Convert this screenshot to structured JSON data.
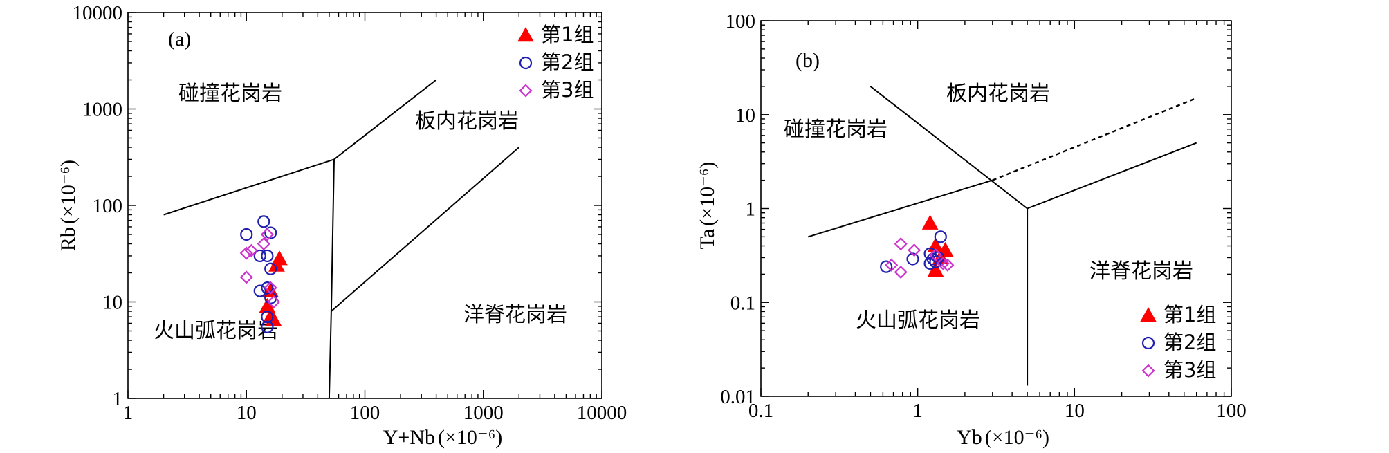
{
  "chart_data": [
    {
      "type": "scatter",
      "panel_label": "(a)",
      "xlabel": "Y+Nb",
      "ylabel": "Rb",
      "unit": "(×10⁻⁶)",
      "xscale": "log",
      "yscale": "log",
      "xlim": [
        1,
        10000
      ],
      "ylim": [
        1,
        10000
      ],
      "x_ticks": [
        1,
        10,
        100,
        1000,
        10000
      ],
      "x_tick_labels": [
        "1",
        "10",
        "100",
        "1000",
        "10000"
      ],
      "y_ticks": [
        1,
        10,
        100,
        1000,
        10000
      ],
      "y_tick_labels": [
        "1",
        "10",
        "100",
        "1000",
        "10000"
      ],
      "regions": [
        {
          "label": "碰撞花岗岩",
          "x": 7,
          "y": 1000
        },
        {
          "label": "板内花岗岩",
          "x": 700,
          "y": 800
        },
        {
          "label": "洋脊花岗岩",
          "x": 1000,
          "y": 8
        },
        {
          "label": "火山弧花岗岩",
          "x": 6,
          "y": 5.5
        }
      ],
      "boundaries": [
        {
          "style": "solid",
          "points": [
            [
              2,
              80
            ],
            [
              55,
              300
            ],
            [
              400,
              2000
            ]
          ]
        },
        {
          "style": "solid",
          "points": [
            [
              55,
              300
            ],
            [
              52,
              8
            ],
            [
              50,
              1
            ]
          ]
        },
        {
          "style": "solid",
          "points": [
            [
              52,
              8
            ],
            [
              2000,
              400
            ]
          ]
        }
      ],
      "legend": {
        "position": "top-right",
        "entries": [
          "第1组",
          "第2组",
          "第3组"
        ]
      },
      "series": [
        {
          "name": "第1组",
          "marker": "triangle",
          "color": "#ff0000",
          "points": [
            [
              19,
              28
            ],
            [
              18,
              24
            ],
            [
              16,
              13
            ],
            [
              15,
              9
            ],
            [
              16,
              7
            ],
            [
              17,
              6.5
            ]
          ]
        },
        {
          "name": "第2组",
          "marker": "circle",
          "color": "#1f1fb0",
          "points": [
            [
              10,
              50
            ],
            [
              14,
              68
            ],
            [
              16,
              52
            ],
            [
              13,
              30
            ],
            [
              15,
              30
            ],
            [
              16,
              22
            ],
            [
              13,
              13
            ],
            [
              15,
              14
            ],
            [
              16,
              11
            ],
            [
              15,
              7
            ],
            [
              15,
              5.5
            ]
          ]
        },
        {
          "name": "第3组",
          "marker": "diamond",
          "color": "#cc33cc",
          "points": [
            [
              10,
              32
            ],
            [
              11,
              34
            ],
            [
              14,
              40
            ],
            [
              15,
              50
            ],
            [
              10,
              18
            ],
            [
              16,
              14
            ],
            [
              17,
              10
            ]
          ]
        }
      ]
    },
    {
      "type": "scatter",
      "panel_label": "(b)",
      "xlabel": "Yb",
      "ylabel": "Ta",
      "unit": "(×10⁻⁶)",
      "xscale": "log",
      "yscale": "log",
      "xlim": [
        0.1,
        100
      ],
      "ylim": [
        0.01,
        100
      ],
      "x_ticks": [
        0.1,
        1,
        10,
        100
      ],
      "x_tick_labels": [
        "0.1",
        "1",
        "10",
        "100"
      ],
      "y_ticks": [
        0.01,
        0.1,
        1,
        10,
        100
      ],
      "y_tick_labels": [
        "0.01",
        "0.1",
        "1",
        "10",
        "100"
      ],
      "regions": [
        {
          "label": "板内花岗岩",
          "x": 1.7,
          "y": 23
        },
        {
          "label": "碰撞花岗岩",
          "x": 0.26,
          "y": 7.5
        },
        {
          "label": "洋脊花岗岩",
          "x": 15,
          "y": 0.32
        },
        {
          "label": "火山弧花岗岩",
          "x": 0.7,
          "y": 0.08
        }
      ],
      "boundaries": [
        {
          "style": "solid",
          "points": [
            [
              0.2,
              0.5
            ],
            [
              3,
              2
            ]
          ]
        },
        {
          "style": "dashed",
          "points": [
            [
              3,
              2
            ],
            [
              60,
              15
            ]
          ]
        },
        {
          "style": "solid",
          "points": [
            [
              0.5,
              20
            ],
            [
              5,
              1
            ]
          ]
        },
        {
          "style": "solid",
          "points": [
            [
              5,
              1
            ],
            [
              60,
              5
            ]
          ]
        },
        {
          "style": "solid",
          "points": [
            [
              5,
              1
            ],
            [
              5,
              0.013
            ]
          ]
        }
      ],
      "legend": {
        "position": "bottom-right",
        "entries": [
          "第1组",
          "第2组",
          "第3组"
        ]
      },
      "series": [
        {
          "name": "第1组",
          "marker": "triangle",
          "color": "#ff0000",
          "points": [
            [
              1.2,
              0.7
            ],
            [
              1.3,
              0.4
            ],
            [
              1.5,
              0.36
            ],
            [
              1.4,
              0.3
            ],
            [
              1.3,
              0.22
            ]
          ]
        },
        {
          "name": "第2组",
          "marker": "circle",
          "color": "#1f1fb0",
          "points": [
            [
              0.63,
              0.24
            ],
            [
              0.93,
              0.29
            ],
            [
              1.2,
              0.33
            ],
            [
              1.25,
              0.29
            ],
            [
              1.2,
              0.26
            ],
            [
              1.3,
              0.27
            ],
            [
              1.4,
              0.5
            ],
            [
              1.35,
              0.3
            ]
          ]
        },
        {
          "name": "第3组",
          "marker": "diamond",
          "color": "#cc33cc",
          "points": [
            [
              0.78,
              0.42
            ],
            [
              0.68,
              0.25
            ],
            [
              0.95,
              0.36
            ],
            [
              0.78,
              0.21
            ],
            [
              1.45,
              0.26
            ],
            [
              1.55,
              0.25
            ],
            [
              1.3,
              0.32
            ]
          ]
        }
      ]
    }
  ]
}
